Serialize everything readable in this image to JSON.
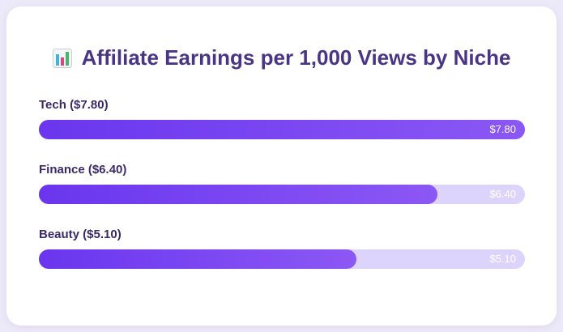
{
  "chart_data": {
    "type": "bar",
    "orientation": "horizontal",
    "title": "Affiliate Earnings per 1,000 Views by Niche",
    "title_icon": "bar-chart-emoji-icon",
    "categories": [
      "Tech",
      "Finance",
      "Beauty"
    ],
    "labels": [
      "Tech ($7.80)",
      "Finance ($6.40)",
      "Beauty ($5.10)"
    ],
    "values": [
      7.8,
      6.4,
      5.1
    ],
    "value_labels": [
      "$7.80",
      "$6.40",
      "$5.10"
    ],
    "xlim": [
      0,
      7.8
    ],
    "grid": false,
    "colors": {
      "fill_start": "#6b35ee",
      "fill_end": "#8b58f5",
      "track": "#ddd4fc",
      "title": "#4a3485"
    }
  }
}
